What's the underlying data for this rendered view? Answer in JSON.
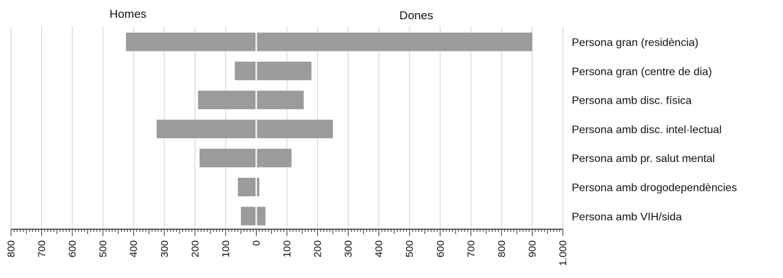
{
  "chart_data": {
    "type": "bar",
    "orientation": "horizontal",
    "layout": "population-pyramid",
    "left_label": "Homes",
    "right_label": "Dones",
    "categories": [
      "Persona gran (residència)",
      "Persona gran (centre de dia)",
      "Persona amb disc. física",
      "Persona amb disc. intel·lectual",
      "Persona amb pr. salut mental",
      "Persona amb drogodependències",
      "Persona amb VIH/sida"
    ],
    "series": [
      {
        "name": "Homes",
        "values": [
          425,
          70,
          190,
          325,
          185,
          60,
          50
        ]
      },
      {
        "name": "Dones",
        "values": [
          900,
          180,
          155,
          250,
          115,
          10,
          30
        ]
      }
    ],
    "x_ticks": [
      "800",
      "700",
      "600",
      "500",
      "400",
      "300",
      "200",
      "100",
      "0",
      "100",
      "200",
      "300",
      "400",
      "500",
      "600",
      "700",
      "800",
      "900",
      "1.000"
    ],
    "xlim": [
      -800,
      1000
    ],
    "grid": true,
    "colors": {
      "bar": "#9b9b9b",
      "grid": "#cfcfcf",
      "axis": "#333333",
      "center": "#ffffff"
    }
  }
}
